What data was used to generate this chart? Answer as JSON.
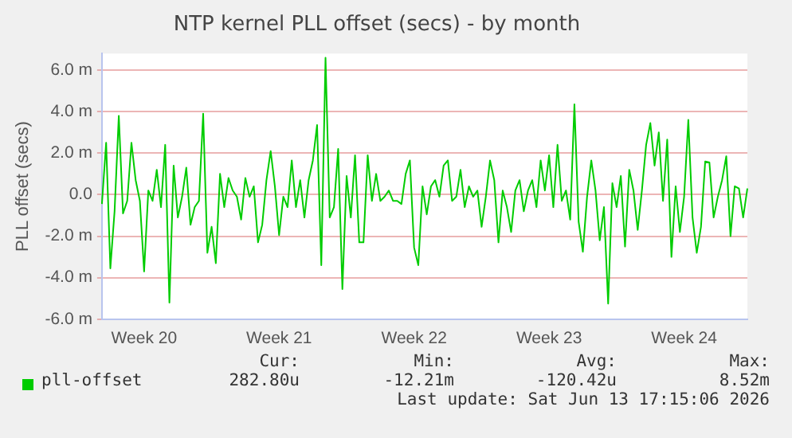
{
  "chart_data": {
    "type": "line",
    "title": "NTP kernel PLL offset (secs) - by month",
    "ylabel": "PLL offset (secs)",
    "categories": [
      null,
      null,
      null,
      null,
      null,
      null,
      null,
      null,
      null,
      null,
      "Week 20",
      null,
      null,
      null,
      null,
      null,
      null,
      null,
      null,
      null,
      null,
      null,
      null,
      null,
      null,
      null,
      null,
      null,
      null,
      null,
      null,
      null,
      null,
      null,
      null,
      null,
      null,
      null,
      null,
      null,
      null,
      null,
      "Week 21",
      null,
      null,
      null,
      null,
      null,
      null,
      null,
      null,
      null,
      null,
      null,
      null,
      null,
      null,
      null,
      null,
      null,
      null,
      null,
      null,
      null,
      null,
      null,
      null,
      null,
      null,
      null,
      null,
      null,
      null,
      null,
      "Week 22",
      null,
      null,
      null,
      null,
      null,
      null,
      null,
      null,
      null,
      null,
      null,
      null,
      null,
      null,
      null,
      null,
      null,
      null,
      null,
      null,
      null,
      null,
      null,
      null,
      null,
      null,
      null,
      null,
      null,
      null,
      null,
      "Week 23",
      null,
      null,
      null,
      null,
      null,
      null,
      null,
      null,
      null,
      null,
      null,
      null,
      null,
      null,
      null,
      null,
      null,
      null,
      null,
      null,
      null,
      null,
      null,
      null,
      null,
      null,
      null,
      null,
      null,
      null,
      null,
      "Week 24",
      null,
      null,
      null,
      null,
      null,
      null,
      null,
      null,
      null,
      null,
      null,
      null,
      null,
      null,
      null
    ],
    "ylim": [
      -6,
      6.8
    ],
    "yticks": [
      {
        "value": -6,
        "label": "-6.0 m"
      },
      {
        "value": -4,
        "label": "-4.0 m"
      },
      {
        "value": -2,
        "label": "-2.0 m"
      },
      {
        "value": 0,
        "label": "0.0"
      },
      {
        "value": 2,
        "label": "2.0 m"
      },
      {
        "value": 4,
        "label": "4.0 m"
      },
      {
        "value": 6,
        "label": "6.0 m"
      }
    ],
    "grid": "y",
    "legend": "bottom",
    "marker": "none",
    "line_style": "solid",
    "series": [
      {
        "name": "pll-offset",
        "color": "#00cc00",
        "values": [
          -0.45,
          2.5,
          -3.55,
          -0.8,
          3.8,
          -0.9,
          -0.3,
          2.5,
          0.7,
          -0.3,
          -3.7,
          0.2,
          -0.3,
          1.2,
          -0.6,
          2.4,
          -5.2,
          1.4,
          -1.1,
          -0.1,
          1.3,
          -1.45,
          -0.6,
          -0.3,
          3.9,
          -2.8,
          -1.55,
          -3.3,
          1.0,
          -0.6,
          0.8,
          0.2,
          -0.1,
          -1.2,
          0.8,
          -0.1,
          0.4,
          -2.3,
          -1.45,
          0.7,
          2.1,
          0.4,
          -1.95,
          -0.1,
          -0.6,
          1.65,
          -0.6,
          0.7,
          -1.1,
          0.7,
          1.65,
          3.35,
          -3.4,
          6.6,
          -1.1,
          -0.6,
          2.2,
          -4.55,
          0.9,
          -1.1,
          1.9,
          -2.3,
          -2.3,
          1.9,
          -0.3,
          1.0,
          -0.3,
          -0.1,
          0.2,
          -0.3,
          -0.3,
          -0.45,
          1.0,
          1.65,
          -2.55,
          -3.4,
          0.4,
          -0.95,
          0.4,
          0.7,
          -0.1,
          1.4,
          1.65,
          -0.3,
          -0.1,
          1.2,
          -0.6,
          0.4,
          -0.1,
          0.2,
          -1.55,
          -0.1,
          1.65,
          0.7,
          -2.3,
          0.2,
          -0.6,
          -1.8,
          0.2,
          0.7,
          -0.8,
          0.2,
          0.7,
          -0.6,
          1.65,
          0.2,
          1.9,
          -0.6,
          2.4,
          -0.3,
          0.2,
          -1.2,
          4.35,
          -1.3,
          -2.75,
          -0.1,
          1.65,
          0.2,
          -2.2,
          -0.6,
          -5.25,
          0.55,
          -0.6,
          0.9,
          -2.5,
          1.2,
          0.2,
          -1.7,
          0.2,
          2.4,
          3.45,
          1.4,
          3.0,
          -0.3,
          2.65,
          -3.0,
          0.4,
          -1.8,
          -0.1,
          3.6,
          -1.1,
          -2.8,
          -1.55,
          1.6,
          1.55,
          -1.1,
          -0.1,
          0.7,
          1.85,
          -2.0,
          0.4,
          0.3,
          -1.1,
          0.3
        ]
      }
    ],
    "annotations": [
      "Cur:",
      "282.80u",
      "Min:",
      "-12.21m",
      "Avg:",
      "-120.42u",
      "Max:",
      "8.52m",
      "Last update: Sat Jun 13 17:15:06 2026"
    ]
  }
}
